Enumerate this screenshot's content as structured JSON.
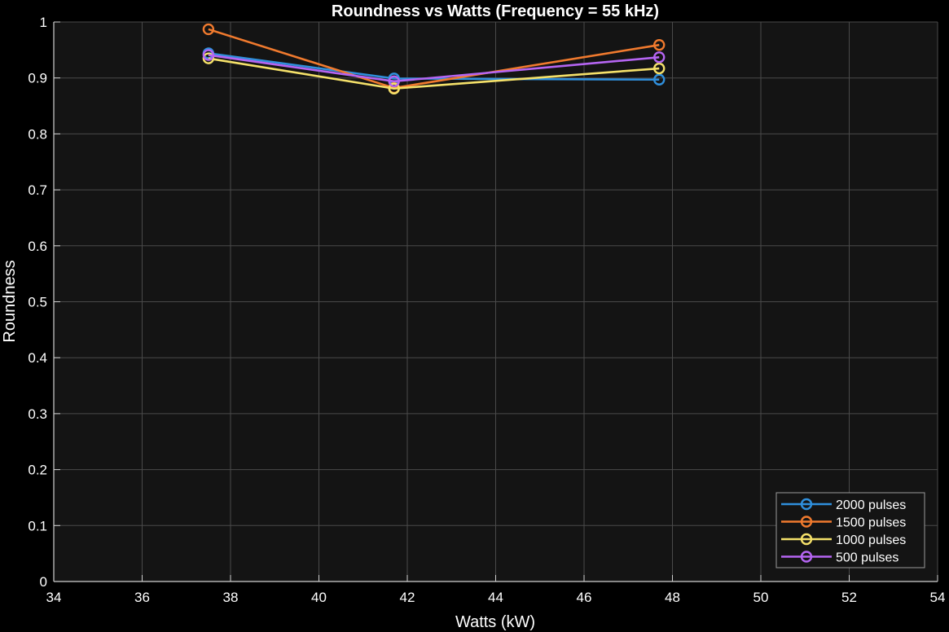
{
  "chart_data": {
    "type": "line",
    "title": "Roundness vs Watts (Frequency = 55 kHz)",
    "xlabel": "Watts (kW)",
    "ylabel": "Roundness",
    "xlim": [
      34,
      54
    ],
    "ylim": [
      0,
      1
    ],
    "xticks": [
      34,
      36,
      38,
      40,
      42,
      44,
      46,
      48,
      50,
      52,
      54
    ],
    "yticks": [
      0,
      0.1,
      0.2,
      0.3,
      0.4,
      0.5,
      0.6,
      0.7,
      0.8,
      0.9,
      1
    ],
    "ytick_labels": [
      "0",
      "0.1",
      "0.2",
      "0.3",
      "0.4",
      "0.5",
      "0.6",
      "0.7",
      "0.8",
      "0.9",
      "1"
    ],
    "grid": true,
    "legend_position": "bottom-right",
    "x": [
      37.5,
      41.7,
      47.7
    ],
    "series": [
      {
        "name": "2000 pulses",
        "values": [
          0.944,
          0.899,
          0.897
        ],
        "color": "#2f8fdc"
      },
      {
        "name": "1500 pulses",
        "values": [
          0.987,
          0.882,
          0.959
        ],
        "color": "#f07a2e"
      },
      {
        "name": "1000 pulses",
        "values": [
          0.935,
          0.881,
          0.917
        ],
        "color": "#f5e16a"
      },
      {
        "name": "500 pulses",
        "values": [
          0.941,
          0.894,
          0.937
        ],
        "color": "#b565f2"
      }
    ],
    "background": "#141414",
    "grid_color": "#4a4a4a"
  }
}
